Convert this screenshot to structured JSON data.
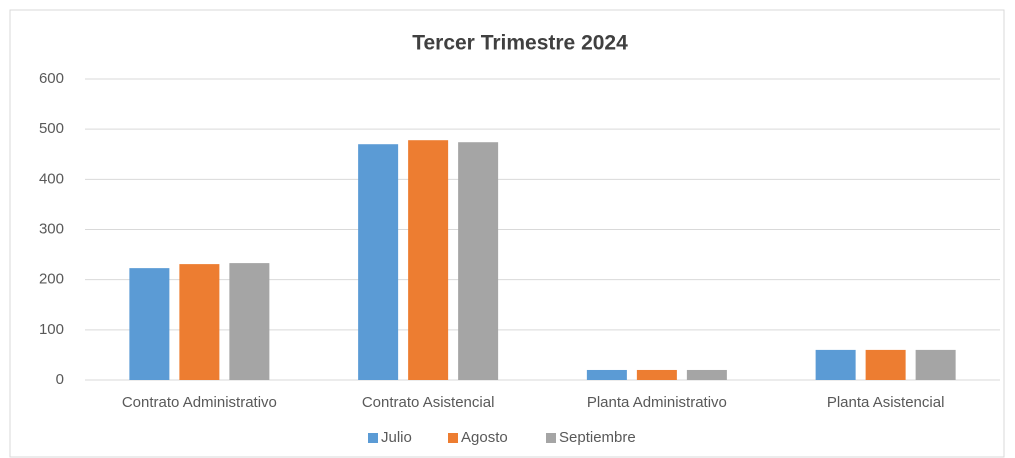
{
  "chart_data": {
    "type": "bar",
    "title": "Tercer Trimestre 2024",
    "categories": [
      "Contrato Administrativo",
      "Contrato Asistencial",
      "Planta Administrativo",
      "Planta Asistencial"
    ],
    "series": [
      {
        "name": "Julio",
        "color": "#5b9bd5",
        "values": [
          223,
          470,
          20,
          60
        ]
      },
      {
        "name": "Agosto",
        "color": "#ed7d31",
        "values": [
          231,
          478,
          20,
          60
        ]
      },
      {
        "name": "Septiembre",
        "color": "#a5a5a5",
        "values": [
          233,
          474,
          20,
          60
        ]
      }
    ],
    "ylim": [
      0,
      600
    ],
    "yticks": [
      0,
      100,
      200,
      300,
      400,
      500,
      600
    ],
    "grid": true,
    "legend": "bottom"
  }
}
